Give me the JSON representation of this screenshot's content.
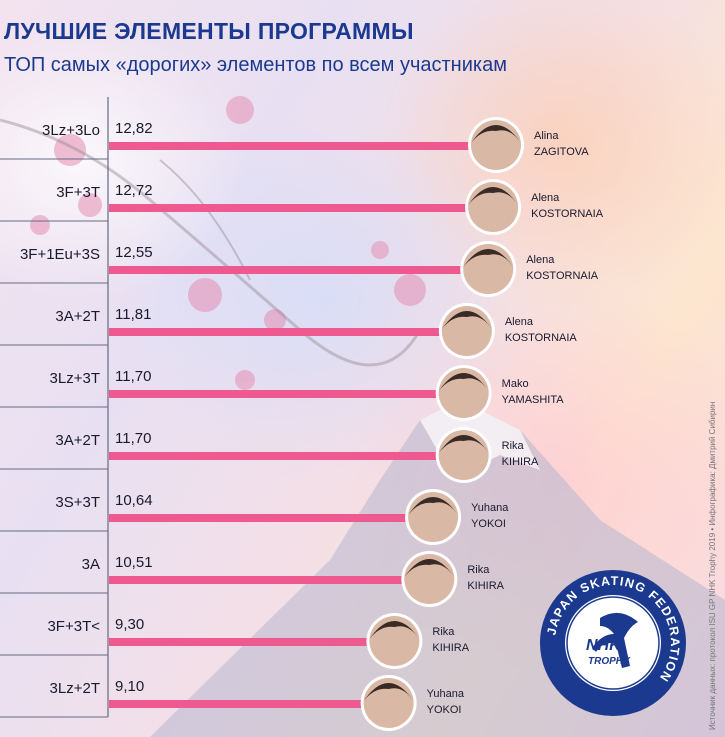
{
  "title": "ЛУЧШИЕ ЭЛЕМЕНТЫ ПРОГРАММЫ",
  "subtitle": "ТОП самых «дорогих» элементов по всем участникам",
  "credit": "Источник данных: протокол ISU GP NHK Trophy 2019 • Инфографика: Дмитрий Сибирин",
  "colors": {
    "bar": "#ee5a8f",
    "title": "#1b3a8f",
    "label": "#1a1a2e",
    "logo": "#1b3a8f"
  },
  "logo": {
    "ring_text": "JAPAN SKATING FEDERATION",
    "line1": "NHK",
    "line2": "TROPHY"
  },
  "chart_data": {
    "type": "bar",
    "orientation": "horizontal",
    "title": "ЛУЧШИЕ ЭЛЕМЕНТЫ ПРОГРАММЫ",
    "subtitle": "ТОП самых «дорогих» элементов по всем участникам",
    "categories": [
      "3Lz+3Lo",
      "3F+3T",
      "3F+1Eu+3S",
      "3A+2T",
      "3Lz+3T",
      "3A+2T",
      "3S+3T",
      "3A",
      "3F+3T<",
      "3Lz+2T"
    ],
    "value_labels": [
      "12,82",
      "12,72",
      "12,55",
      "11,81",
      "11,70",
      "11,70",
      "10,64",
      "10,51",
      "9,30",
      "9,10"
    ],
    "values": [
      12.82,
      12.72,
      12.55,
      11.81,
      11.7,
      11.7,
      10.64,
      10.51,
      9.3,
      9.1
    ],
    "skaters": [
      {
        "first": "Alina",
        "last": "ZAGITOVA"
      },
      {
        "first": "Alena",
        "last": "KOSTORNAIA"
      },
      {
        "first": "Alena",
        "last": "KOSTORNAIA"
      },
      {
        "first": "Alena",
        "last": "KOSTORNAIA"
      },
      {
        "first": "Mako",
        "last": "YAMASHITA"
      },
      {
        "first": "Rika",
        "last": "KIHIRA"
      },
      {
        "first": "Yuhana",
        "last": "YOKOI"
      },
      {
        "first": "Rika",
        "last": "KIHIRA"
      },
      {
        "first": "Rika",
        "last": "KIHIRA"
      },
      {
        "first": "Yuhana",
        "last": "YOKOI"
      }
    ],
    "xlim": [
      0,
      12.82
    ],
    "grid": false,
    "legend": "none"
  }
}
